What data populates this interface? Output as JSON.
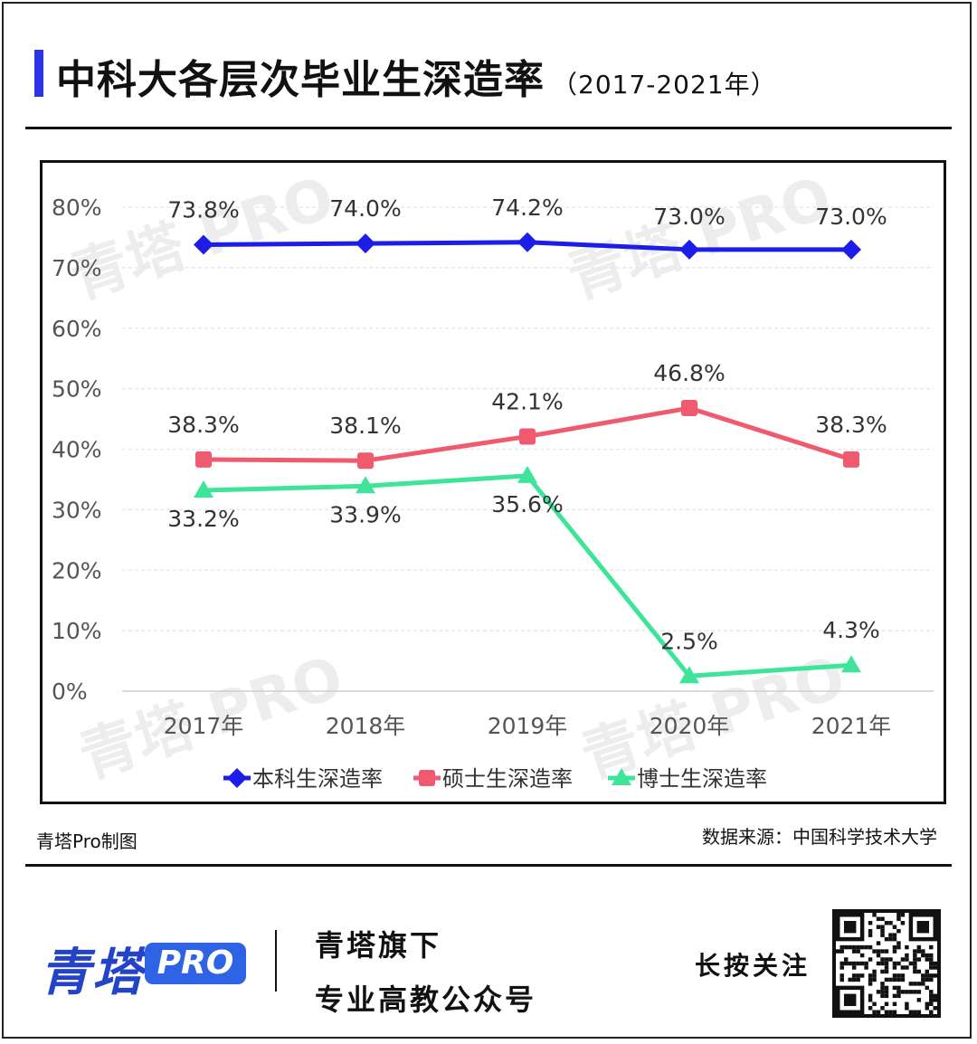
{
  "title": "中科大各层次毕业生深造率",
  "subtitle": "（2017-2021年）",
  "credit_left": "青塔Pro制图",
  "credit_right": "数据来源：中国科学技术大学",
  "watermark": "青塔 PRO",
  "footer": {
    "brand": "青塔",
    "brand_badge": "PRO",
    "tagline1": "青塔旗下",
    "tagline2": "专业高教公众号",
    "follow": "长按关注"
  },
  "colors": {
    "accent": "#2b34e6",
    "bachelor": "#1c1ee8",
    "master": "#f05a6e",
    "doctor": "#3ee49a"
  },
  "chart_data": {
    "type": "line",
    "categories": [
      "2017年",
      "2018年",
      "2019年",
      "2020年",
      "2021年"
    ],
    "yticks": [
      "0%",
      "10%",
      "20%",
      "30%",
      "40%",
      "50%",
      "60%",
      "70%",
      "80%"
    ],
    "ylim": [
      0,
      80
    ],
    "grid": true,
    "legend_position": "bottom",
    "series": [
      {
        "name": "本科生深造率",
        "values": [
          73.8,
          74.0,
          74.2,
          73.0,
          73.0
        ],
        "labels": [
          "73.8%",
          "74.0%",
          "74.2%",
          "73.0%",
          "73.0%"
        ],
        "marker": "diamond",
        "color": "#1c1ee8"
      },
      {
        "name": "硕士生深造率",
        "values": [
          38.3,
          38.1,
          42.1,
          46.8,
          38.3
        ],
        "labels": [
          "38.3%",
          "38.1%",
          "42.1%",
          "46.8%",
          "38.3%"
        ],
        "marker": "square",
        "color": "#f05a6e"
      },
      {
        "name": "博士生深造率",
        "values": [
          33.2,
          33.9,
          35.6,
          2.5,
          4.3
        ],
        "labels": [
          "33.2%",
          "33.9%",
          "35.6%",
          "2.5%",
          "4.3%"
        ],
        "marker": "triangle",
        "color": "#3ee49a"
      }
    ]
  }
}
